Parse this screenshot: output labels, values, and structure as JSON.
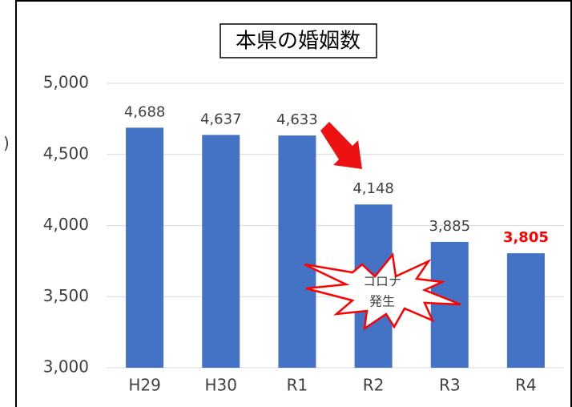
{
  "chart_data": {
    "type": "bar",
    "title": "本県の婚姻数",
    "ylabel": ")",
    "categories": [
      "H29",
      "H30",
      "R1",
      "R2",
      "R3",
      "R4"
    ],
    "values": [
      4688,
      4637,
      4633,
      4148,
      3885,
      3805
    ],
    "value_labels": [
      "4,688",
      "4,637",
      "4,633",
      "4,148",
      "3,885",
      "3,805"
    ],
    "value_label_colors": [
      "#404040",
      "#404040",
      "#404040",
      "#404040",
      "#404040",
      "#ff0000"
    ],
    "color": "#4472c4",
    "ylim": [
      3000,
      5000
    ],
    "yticks": [
      {
        "value": 3000,
        "label": "3,000"
      },
      {
        "value": 3500,
        "label": "3,500"
      },
      {
        "value": 4000,
        "label": "4,000"
      },
      {
        "value": 4500,
        "label": "4,500"
      },
      {
        "value": 5000,
        "label": "5,000"
      }
    ],
    "grid": true,
    "annotation": [
      "コロナ",
      "発生"
    ]
  }
}
